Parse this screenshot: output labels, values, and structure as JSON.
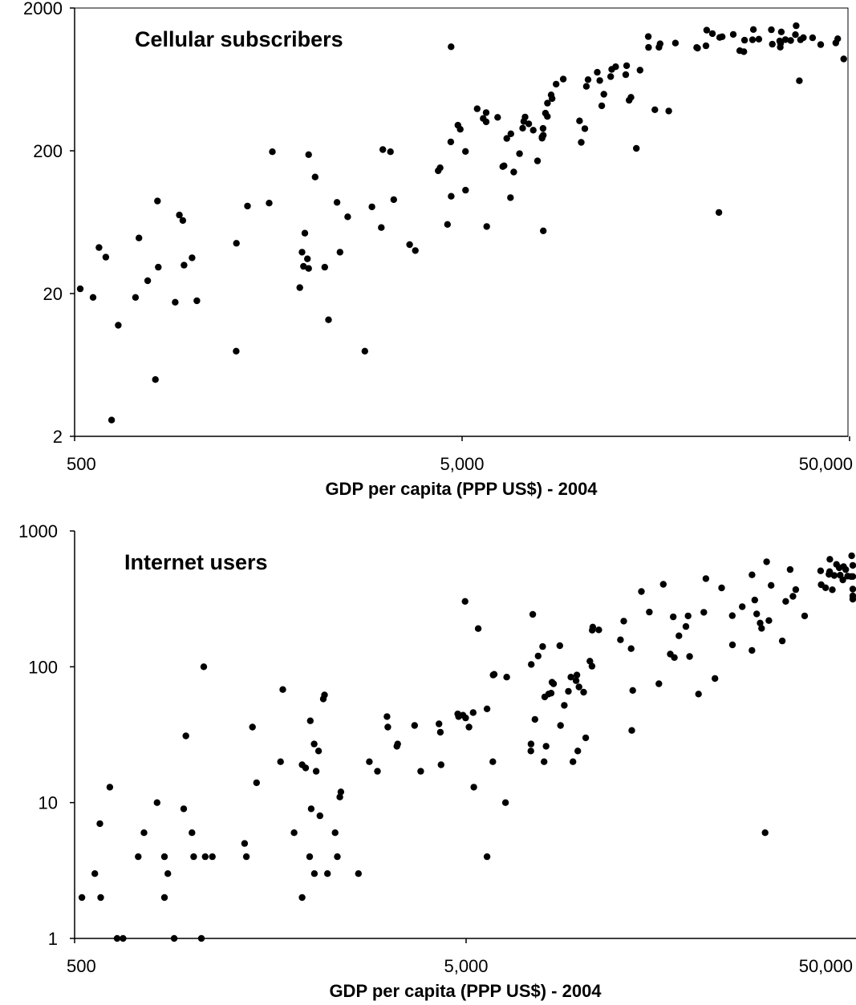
{
  "chart_data": [
    {
      "type": "scatter",
      "title": "Cellular subscribers",
      "xlabel": "GDP per capita (PPP US$) - 2004",
      "ylabel": "",
      "x_scale": "log",
      "y_scale": "log",
      "xlim": [
        500,
        50000
      ],
      "ylim": [
        2,
        2000
      ],
      "x_ticks": [
        500,
        5000,
        50000
      ],
      "x_tick_labels": [
        "500",
        "5,000",
        "50,000"
      ],
      "y_ticks": [
        2,
        20,
        200,
        2000
      ],
      "y_tick_labels": [
        "2",
        "20",
        "200",
        "2000"
      ],
      "grid": false,
      "points": [
        [
          517,
          21.6
        ],
        [
          558,
          18.8
        ],
        [
          578,
          42
        ],
        [
          602,
          36
        ],
        [
          623,
          2.6
        ],
        [
          648,
          12
        ],
        [
          718,
          18.8
        ],
        [
          733,
          49
        ],
        [
          772,
          24.6
        ],
        [
          808,
          5
        ],
        [
          818,
          89
        ],
        [
          822,
          30.6
        ],
        [
          909,
          17.4
        ],
        [
          932,
          71
        ],
        [
          951,
          65
        ],
        [
          958,
          31.6
        ],
        [
          1005,
          35.6
        ],
        [
          1034,
          17.8
        ],
        [
          1306,
          7.9
        ],
        [
          1308,
          45
        ],
        [
          1397,
          82
        ],
        [
          1589,
          86
        ],
        [
          1619,
          197
        ],
        [
          1906,
          22
        ],
        [
          1932,
          39
        ],
        [
          1948,
          31
        ],
        [
          1964,
          53
        ],
        [
          1994,
          35
        ],
        [
          2009,
          30
        ],
        [
          2009,
          188
        ],
        [
          2088,
          131
        ],
        [
          2211,
          30.6
        ],
        [
          2261,
          13.1
        ],
        [
          2378,
          87
        ],
        [
          2420,
          39
        ],
        [
          2533,
          69
        ],
        [
          2806,
          7.9
        ],
        [
          2926,
          81
        ],
        [
          3094,
          58
        ],
        [
          3122,
          204
        ],
        [
          3266,
          197
        ],
        [
          3331,
          91
        ],
        [
          3660,
          44
        ],
        [
          3786,
          40
        ],
        [
          4337,
          145
        ],
        [
          4388,
          152
        ],
        [
          4584,
          61
        ],
        [
          4684,
          1071
        ],
        [
          4674,
          231
        ],
        [
          4687,
          96
        ],
        [
          4877,
          302
        ],
        [
          4946,
          283
        ],
        [
          5100,
          198
        ],
        [
          5104,
          106
        ],
        [
          5468,
          394
        ],
        [
          5669,
          337
        ],
        [
          5768,
          319
        ],
        [
          5768,
          370
        ],
        [
          5788,
          59
        ],
        [
          6176,
          343
        ],
        [
          6368,
          155
        ],
        [
          6417,
          157
        ],
        [
          6520,
          244
        ],
        [
          6666,
          94
        ],
        [
          6682,
          263
        ],
        [
          6797,
          142
        ],
        [
          7034,
          191
        ],
        [
          7166,
          288
        ],
        [
          7213,
          321
        ],
        [
          7269,
          345
        ],
        [
          7431,
          309
        ],
        [
          7633,
          279
        ],
        [
          7828,
          170
        ],
        [
          8038,
          250
        ],
        [
          8043,
          245
        ],
        [
          8089,
          287
        ],
        [
          8100,
          55
        ],
        [
          8101,
          257
        ],
        [
          8206,
          367
        ],
        [
          8299,
          348
        ],
        [
          8304,
          431
        ],
        [
          8489,
          493
        ],
        [
          8538,
          464
        ],
        [
          8743,
          586
        ],
        [
          9121,
          636
        ],
        [
          10049,
          324
        ],
        [
          10151,
          229
        ],
        [
          10367,
          286
        ],
        [
          10463,
          565
        ],
        [
          10571,
          630
        ],
        [
          11164,
          710
        ],
        [
          11329,
          621
        ],
        [
          11467,
          413
        ],
        [
          11609,
          498
        ],
        [
          12092,
          662
        ],
        [
          12163,
          743
        ],
        [
          12454,
          776
        ],
        [
          13225,
          683
        ],
        [
          13294,
          789
        ],
        [
          13492,
          452
        ],
        [
          13639,
          474
        ],
        [
          14085,
          208
        ],
        [
          14394,
          734
        ],
        [
          15115,
          1262
        ],
        [
          15139,
          1060
        ],
        [
          15719,
          388
        ],
        [
          16111,
          1063
        ],
        [
          16213,
          1123
        ],
        [
          17074,
          380
        ],
        [
          17766,
          1137
        ],
        [
          20149,
          1058
        ],
        [
          20255,
          1048
        ],
        [
          21297,
          1088
        ],
        [
          21396,
          1400
        ],
        [
          22125,
          1324
        ],
        [
          23000,
          74
        ],
        [
          23106,
          1244
        ],
        [
          23453,
          1259
        ],
        [
          25052,
          1307
        ],
        [
          26032,
          1005
        ],
        [
          26680,
          989
        ],
        [
          26785,
          1190
        ],
        [
          28077,
          1198
        ],
        [
          28227,
          1414
        ],
        [
          29164,
          1211
        ],
        [
          31406,
          1408
        ],
        [
          31590,
          1116
        ],
        [
          33002,
          1176
        ],
        [
          33116,
          1064
        ],
        [
          33187,
          1131
        ],
        [
          33320,
          1361
        ],
        [
          34145,
          1202
        ],
        [
          35236,
          1184
        ],
        [
          36251,
          1301
        ],
        [
          36398,
          1502
        ],
        [
          37092,
          619
        ],
        [
          37349,
          1199
        ],
        [
          37986,
          1240
        ],
        [
          40133,
          1238
        ],
        [
          42117,
          1109
        ],
        [
          46063,
          1139
        ],
        [
          46595,
          1219
        ],
        [
          48279,
          880
        ]
      ]
    },
    {
      "type": "scatter",
      "title": "Internet users",
      "xlabel": "GDP per capita (PPP US$) - 2004",
      "ylabel": "",
      "x_scale": "log",
      "y_scale": "log",
      "xlim": [
        500,
        60000
      ],
      "ylim": [
        1,
        1000
      ],
      "x_ticks": [
        500,
        5000,
        50000
      ],
      "x_tick_labels": [
        "500",
        "5,000",
        "50,000"
      ],
      "y_ticks": [
        1,
        10,
        100,
        1000
      ],
      "y_tick_labels": [
        "1",
        "10",
        "100",
        "1000"
      ],
      "grid": false,
      "points": [
        [
          522,
          2
        ],
        [
          563,
          3
        ],
        [
          580,
          7
        ],
        [
          583,
          2
        ],
        [
          615,
          13
        ],
        [
          642,
          1
        ],
        [
          665,
          1
        ],
        [
          727,
          4
        ],
        [
          752,
          6
        ],
        [
          812,
          10
        ],
        [
          848,
          2
        ],
        [
          848,
          4
        ],
        [
          865,
          3
        ],
        [
          898,
          1
        ],
        [
          950,
          9
        ],
        [
          962,
          31
        ],
        [
          997,
          6
        ],
        [
          1007,
          4
        ],
        [
          1054,
          1
        ],
        [
          1069,
          100
        ],
        [
          1078,
          4
        ],
        [
          1124,
          4
        ],
        [
          1359,
          5
        ],
        [
          1373,
          4
        ],
        [
          1423,
          36
        ],
        [
          1458,
          14
        ],
        [
          1679,
          20
        ],
        [
          1701,
          68
        ],
        [
          1818,
          6
        ],
        [
          1906,
          2
        ],
        [
          1906,
          19
        ],
        [
          1946,
          18
        ],
        [
          1992,
          4
        ],
        [
          2000,
          40
        ],
        [
          2010,
          9
        ],
        [
          2049,
          3
        ],
        [
          2046,
          27
        ],
        [
          2070,
          17
        ],
        [
          2100,
          24
        ],
        [
          2116,
          8
        ],
        [
          2159,
          58
        ],
        [
          2174,
          62
        ],
        [
          2212,
          3
        ],
        [
          2314,
          6
        ],
        [
          2345,
          4
        ],
        [
          2379,
          11
        ],
        [
          2394,
          12
        ],
        [
          2654,
          3
        ],
        [
          2831,
          20
        ],
        [
          2969,
          17
        ],
        [
          3140,
          43
        ],
        [
          3155,
          36
        ],
        [
          3328,
          26
        ],
        [
          3343,
          27
        ],
        [
          3694,
          37
        ],
        [
          3828,
          17
        ],
        [
          4263,
          38
        ],
        [
          4297,
          33
        ],
        [
          4316,
          19
        ],
        [
          4761,
          45
        ],
        [
          4783,
          43
        ],
        [
          4908,
          44
        ],
        [
          4969,
          303
        ],
        [
          4987,
          42
        ],
        [
          5086,
          36
        ],
        [
          5213,
          46
        ],
        [
          5232,
          13
        ],
        [
          5369,
          191
        ],
        [
          5655,
          4
        ],
        [
          5655,
          49
        ],
        [
          5851,
          20
        ],
        [
          5899,
          88
        ],
        [
          5863,
          87
        ],
        [
          6303,
          10
        ],
        [
          6349,
          84
        ],
        [
          7316,
          24
        ],
        [
          7324,
          27
        ],
        [
          7335,
          104
        ],
        [
          7400,
          243
        ],
        [
          7497,
          41
        ],
        [
          7637,
          120
        ],
        [
          7844,
          141
        ],
        [
          7908,
          20
        ],
        [
          7941,
          60
        ],
        [
          8002,
          26
        ],
        [
          8121,
          63
        ],
        [
          8245,
          64
        ],
        [
          8287,
          77
        ],
        [
          8362,
          75
        ],
        [
          8675,
          143
        ],
        [
          8711,
          37
        ],
        [
          8909,
          52
        ],
        [
          9126,
          66
        ],
        [
          9261,
          84
        ],
        [
          9372,
          20
        ],
        [
          9548,
          79
        ],
        [
          9592,
          87
        ],
        [
          9645,
          24
        ],
        [
          9712,
          71
        ],
        [
          9981,
          65
        ],
        [
          10102,
          30
        ],
        [
          10355,
          110
        ],
        [
          10484,
          101
        ],
        [
          10499,
          186
        ],
        [
          10535,
          196
        ],
        [
          10913,
          187
        ],
        [
          12393,
          158
        ],
        [
          12639,
          217
        ],
        [
          13196,
          136
        ],
        [
          13249,
          34
        ],
        [
          13323,
          67
        ],
        [
          14022,
          358
        ],
        [
          14691,
          253
        ],
        [
          15536,
          75
        ],
        [
          15945,
          405
        ],
        [
          16618,
          124
        ],
        [
          16904,
          233
        ],
        [
          17016,
          117
        ],
        [
          17483,
          169
        ],
        [
          18217,
          198
        ],
        [
          18446,
          237
        ],
        [
          18617,
          119
        ],
        [
          19618,
          63
        ],
        [
          20237,
          252
        ],
        [
          20484,
          446
        ],
        [
          21608,
          82
        ],
        [
          22471,
          381
        ],
        [
          23924,
          238
        ],
        [
          23948,
          145
        ],
        [
          25373,
          277
        ],
        [
          26863,
          132
        ],
        [
          26868,
          475
        ],
        [
          27307,
          310
        ],
        [
          27623,
          245
        ],
        [
          28185,
          210
        ],
        [
          28430,
          192
        ],
        [
          29018,
          6
        ],
        [
          29276,
          593
        ],
        [
          29665,
          219
        ],
        [
          30072,
          398
        ],
        [
          32111,
          155
        ],
        [
          32762,
          303
        ],
        [
          33628,
          520
        ],
        [
          34188,
          330
        ],
        [
          34744,
          370
        ],
        [
          36622,
          237
        ],
        [
          40222,
          509
        ],
        [
          40360,
          402
        ],
        [
          41416,
          382
        ],
        [
          42241,
          480
        ],
        [
          42405,
          502
        ],
        [
          42467,
          619
        ],
        [
          43087,
          369
        ],
        [
          43577,
          470
        ],
        [
          44158,
          567
        ],
        [
          44885,
          536
        ],
        [
          45127,
          473
        ],
        [
          45837,
          436
        ],
        [
          46045,
          547
        ],
        [
          46621,
          520
        ],
        [
          47158,
          465
        ],
        [
          48064,
          462
        ],
        [
          48290,
          657
        ],
        [
          49004,
          462
        ],
        [
          53305,
          333
        ],
        [
          53972,
          315
        ],
        [
          55051,
          558
        ],
        [
          62012,
          373
        ]
      ]
    }
  ]
}
